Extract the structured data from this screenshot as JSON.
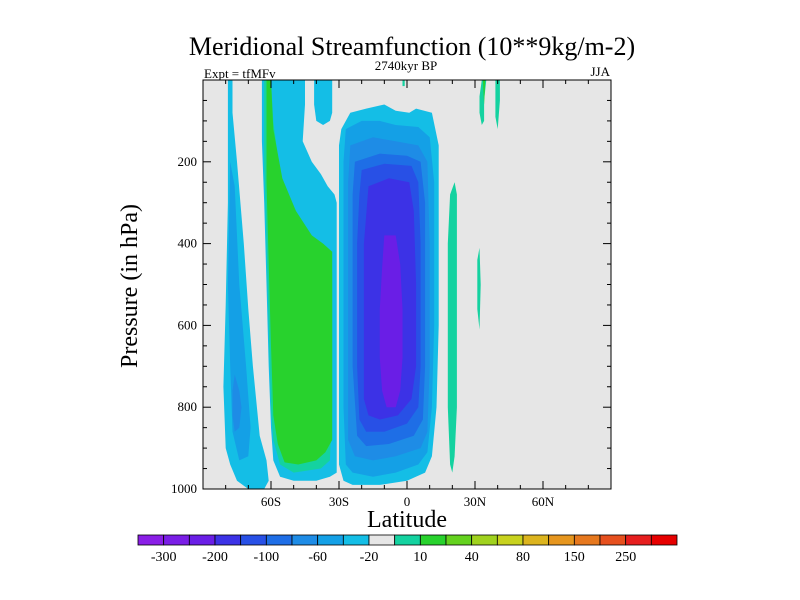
{
  "chart_data": {
    "type": "contour",
    "title": "Meridional Streamfunction (10**9kg/m-2)",
    "subtitle_left": "Expt = tfMFv",
    "subtitle_center": "2740kyr BP",
    "subtitle_right": "JJA",
    "xlabel": "Latitude",
    "ylabel": "Pressure (in hPa)",
    "xlim": [
      -90,
      90
    ],
    "ylim": [
      1000,
      0
    ],
    "xticks": [
      {
        "value": -60,
        "label": "60S"
      },
      {
        "value": -30,
        "label": "30S"
      },
      {
        "value": 0,
        "label": "0"
      },
      {
        "value": 30,
        "label": "30N"
      },
      {
        "value": 60,
        "label": "60N"
      }
    ],
    "yticks": [
      {
        "value": 200,
        "label": "200"
      },
      {
        "value": 400,
        "label": "400"
      },
      {
        "value": 600,
        "label": "600"
      },
      {
        "value": 800,
        "label": "800"
      },
      {
        "value": 1000,
        "label": "1000"
      }
    ],
    "background_color": "#e6e6e6",
    "colorbar": {
      "colors": [
        "#8a1ee6",
        "#7a1ee6",
        "#6a1ee6",
        "#3c32e6",
        "#2850e6",
        "#1e6ee6",
        "#1e8ce6",
        "#14a0e6",
        "#14bee6",
        "#e6e6e6",
        "#14d2a0",
        "#28d22d",
        "#64d21e",
        "#a0d21e",
        "#c8d21e",
        "#dcb41e",
        "#e6961e",
        "#e6781e",
        "#e6501e",
        "#e61e1e",
        "#e60000"
      ],
      "labels": [
        {
          "after_box": 1,
          "label": "-300"
        },
        {
          "after_box": 3,
          "label": "-200"
        },
        {
          "after_box": 5,
          "label": "-100"
        },
        {
          "after_box": 7,
          "label": "-60"
        },
        {
          "after_box": 9,
          "label": "-20"
        },
        {
          "after_box": 11,
          "label": "10"
        },
        {
          "after_box": 13,
          "label": "40"
        },
        {
          "after_box": 15,
          "label": "80"
        },
        {
          "after_box": 17,
          "label": "150"
        },
        {
          "after_box": 19,
          "label": "250"
        }
      ]
    },
    "regions": [
      {
        "name": "sh-outer-cell-light",
        "color": "#14bee6",
        "points": [
          [
            -79,
            0
          ],
          [
            -77,
            0
          ],
          [
            -77,
            80
          ],
          [
            -75,
            200
          ],
          [
            -72,
            400
          ],
          [
            -70,
            560
          ],
          [
            -68,
            700
          ],
          [
            -65,
            870
          ],
          [
            -62,
            930
          ],
          [
            -61,
            980
          ],
          [
            -63,
            1000
          ],
          [
            -70,
            1000
          ],
          [
            -75,
            980
          ],
          [
            -78,
            940
          ],
          [
            -80,
            900
          ],
          [
            -81,
            750
          ],
          [
            -80,
            550
          ],
          [
            -79,
            300
          ]
        ]
      },
      {
        "name": "sh-outer-cell-mid",
        "color": "#14a0e6",
        "points": [
          [
            -78,
            200
          ],
          [
            -76,
            260
          ],
          [
            -74,
            500
          ],
          [
            -71,
            700
          ],
          [
            -69,
            850
          ],
          [
            -70,
            920
          ],
          [
            -74,
            930
          ],
          [
            -77,
            860
          ],
          [
            -78,
            700
          ],
          [
            -79,
            500
          ]
        ]
      },
      {
        "name": "sh-outer-cell-core",
        "color": "#1e8ce6",
        "points": [
          [
            -76,
            720
          ],
          [
            -74,
            760
          ],
          [
            -73,
            800
          ],
          [
            -74,
            850
          ],
          [
            -76,
            860
          ],
          [
            -77,
            820
          ],
          [
            -77,
            760
          ]
        ]
      },
      {
        "name": "sh-ferrel-cyan",
        "color": "#14bee6",
        "points": [
          [
            -64,
            0
          ],
          [
            -45,
            0
          ],
          [
            -45,
            60
          ],
          [
            -46,
            150
          ],
          [
            -42,
            200
          ],
          [
            -38,
            230
          ],
          [
            -35,
            260
          ],
          [
            -32,
            280
          ],
          [
            -31,
            300
          ],
          [
            -31,
            500
          ],
          [
            -31,
            800
          ],
          [
            -31,
            920
          ],
          [
            -31,
            960
          ],
          [
            -34,
            970
          ],
          [
            -40,
            980
          ],
          [
            -50,
            980
          ],
          [
            -56,
            970
          ],
          [
            -59,
            930
          ],
          [
            -60,
            850
          ],
          [
            -61,
            700
          ],
          [
            -62,
            500
          ],
          [
            -63,
            300
          ],
          [
            -64,
            150
          ]
        ]
      },
      {
        "name": "sh-ferrel-teal",
        "color": "#14d2a0",
        "points": [
          [
            -63,
            0
          ],
          [
            -60,
            0
          ],
          [
            -59,
            100
          ],
          [
            -56,
            230
          ],
          [
            -52,
            300
          ],
          [
            -46,
            360
          ],
          [
            -40,
            400
          ],
          [
            -36,
            430
          ],
          [
            -33,
            470
          ],
          [
            -33,
            600
          ],
          [
            -33,
            800
          ],
          [
            -34,
            930
          ],
          [
            -38,
            950
          ],
          [
            -50,
            960
          ],
          [
            -56,
            940
          ],
          [
            -59,
            880
          ],
          [
            -60,
            800
          ],
          [
            -61,
            600
          ],
          [
            -62,
            400
          ],
          [
            -63,
            200
          ]
        ]
      },
      {
        "name": "sh-ferrel-green",
        "color": "#28d22d",
        "points": [
          [
            -62,
            0
          ],
          [
            -60,
            0
          ],
          [
            -59,
            120
          ],
          [
            -55,
            240
          ],
          [
            -49,
            320
          ],
          [
            -42,
            380
          ],
          [
            -37,
            400
          ],
          [
            -33,
            420
          ],
          [
            -33,
            560
          ],
          [
            -33,
            800
          ],
          [
            -33,
            880
          ],
          [
            -36,
            910
          ],
          [
            -40,
            930
          ],
          [
            -48,
            940
          ],
          [
            -54,
            935
          ],
          [
            -57,
            890
          ],
          [
            -59,
            820
          ],
          [
            -60,
            650
          ],
          [
            -61,
            450
          ],
          [
            -62,
            250
          ]
        ]
      },
      {
        "name": "upper-cyan-blob",
        "color": "#14bee6",
        "points": [
          [
            -41,
            0
          ],
          [
            -33,
            0
          ],
          [
            -33,
            80
          ],
          [
            -34,
            100
          ],
          [
            -37,
            110
          ],
          [
            -40,
            100
          ],
          [
            -41,
            60
          ]
        ]
      },
      {
        "name": "tropical-light",
        "color": "#14bee6",
        "points": [
          [
            -29,
            120
          ],
          [
            -25,
            80
          ],
          [
            -18,
            70
          ],
          [
            -10,
            60
          ],
          [
            -5,
            75
          ],
          [
            1,
            80
          ],
          [
            4,
            70
          ],
          [
            11,
            80
          ],
          [
            14,
            160
          ],
          [
            14,
            300
          ],
          [
            14,
            600
          ],
          [
            13,
            800
          ],
          [
            11,
            920
          ],
          [
            8,
            960
          ],
          [
            0,
            980
          ],
          [
            -12,
            990
          ],
          [
            -24,
            990
          ],
          [
            -28,
            980
          ],
          [
            -30,
            940
          ],
          [
            -30,
            800
          ],
          [
            -30,
            600
          ],
          [
            -30,
            400
          ],
          [
            -30,
            250
          ],
          [
            -30,
            160
          ]
        ]
      },
      {
        "name": "tropical-mid",
        "color": "#14a0e6",
        "points": [
          [
            -27,
            120
          ],
          [
            -20,
            100
          ],
          [
            -12,
            100
          ],
          [
            -5,
            110
          ],
          [
            5,
            115
          ],
          [
            10,
            140
          ],
          [
            12,
            250
          ],
          [
            12,
            600
          ],
          [
            11,
            800
          ],
          [
            9,
            910
          ],
          [
            5,
            940
          ],
          [
            -5,
            960
          ],
          [
            -15,
            970
          ],
          [
            -24,
            960
          ],
          [
            -27,
            940
          ],
          [
            -28,
            800
          ],
          [
            -28,
            400
          ],
          [
            -28,
            200
          ]
        ]
      },
      {
        "name": "tropical-blue1",
        "color": "#1e8ce6",
        "points": [
          [
            -25,
            160
          ],
          [
            -15,
            140
          ],
          [
            -5,
            150
          ],
          [
            5,
            160
          ],
          [
            9,
            200
          ],
          [
            10,
            400
          ],
          [
            10,
            700
          ],
          [
            9,
            860
          ],
          [
            6,
            900
          ],
          [
            -5,
            920
          ],
          [
            -15,
            930
          ],
          [
            -23,
            920
          ],
          [
            -26,
            880
          ],
          [
            -26,
            700
          ],
          [
            -26,
            400
          ],
          [
            -26,
            250
          ]
        ]
      },
      {
        "name": "tropical-blue2",
        "color": "#1e6ee6",
        "points": [
          [
            -23,
            200
          ],
          [
            -12,
            180
          ],
          [
            0,
            185
          ],
          [
            6,
            200
          ],
          [
            8,
            300
          ],
          [
            8,
            700
          ],
          [
            7,
            830
          ],
          [
            3,
            870
          ],
          [
            -8,
            890
          ],
          [
            -18,
            895
          ],
          [
            -22,
            870
          ],
          [
            -24,
            700
          ],
          [
            -24,
            400
          ],
          [
            -24,
            280
          ]
        ]
      },
      {
        "name": "tropical-blue3",
        "color": "#2850e6",
        "points": [
          [
            -20,
            220
          ],
          [
            -10,
            205
          ],
          [
            2,
            210
          ],
          [
            5,
            250
          ],
          [
            6,
            400
          ],
          [
            6,
            700
          ],
          [
            5,
            800
          ],
          [
            0,
            840
          ],
          [
            -10,
            860
          ],
          [
            -18,
            860
          ],
          [
            -21,
            830
          ],
          [
            -22,
            700
          ],
          [
            -22,
            400
          ],
          [
            -21,
            280
          ]
        ]
      },
      {
        "name": "tropical-blue4",
        "color": "#3c32e6",
        "points": [
          [
            -17,
            260
          ],
          [
            -8,
            240
          ],
          [
            1,
            250
          ],
          [
            3,
            320
          ],
          [
            4,
            500
          ],
          [
            4,
            700
          ],
          [
            2,
            780
          ],
          [
            -4,
            820
          ],
          [
            -12,
            830
          ],
          [
            -17,
            820
          ],
          [
            -19,
            780
          ],
          [
            -19,
            600
          ],
          [
            -19,
            400
          ]
        ]
      },
      {
        "name": "tropical-core",
        "color": "#6a1ee6",
        "points": [
          [
            -10,
            380
          ],
          [
            -5,
            380
          ],
          [
            -3,
            450
          ],
          [
            -2,
            560
          ],
          [
            -2,
            680
          ],
          [
            -3,
            760
          ],
          [
            -5,
            800
          ],
          [
            -9,
            800
          ],
          [
            -11,
            760
          ],
          [
            -12,
            680
          ],
          [
            -12,
            560
          ],
          [
            -11,
            460
          ]
        ]
      },
      {
        "name": "upper-equator-teal",
        "color": "#14d2a0",
        "points": [
          [
            -2,
            0
          ],
          [
            -1,
            0
          ],
          [
            -1,
            15
          ],
          [
            -2,
            15
          ]
        ]
      },
      {
        "name": "nh-teal-column",
        "color": "#14d2a0",
        "points": [
          [
            19,
            280
          ],
          [
            21,
            250
          ],
          [
            22,
            280
          ],
          [
            22,
            400
          ],
          [
            22,
            600
          ],
          [
            22,
            800
          ],
          [
            21,
            920
          ],
          [
            20,
            960
          ],
          [
            19,
            940
          ],
          [
            18,
            800
          ],
          [
            18,
            600
          ],
          [
            18,
            400
          ]
        ]
      },
      {
        "name": "nh-upper-green-1",
        "color": "#14d2a0",
        "points": [
          [
            33,
            0
          ],
          [
            35,
            0
          ],
          [
            34,
            50
          ],
          [
            34,
            100
          ],
          [
            33,
            110
          ],
          [
            32,
            80
          ],
          [
            32,
            40
          ]
        ]
      },
      {
        "name": "nh-upper-green-2",
        "color": "#14d2a0",
        "points": [
          [
            39,
            0
          ],
          [
            41,
            0
          ],
          [
            41,
            50
          ],
          [
            40,
            120
          ],
          [
            39,
            90
          ]
        ]
      },
      {
        "name": "nh-upper-green-core",
        "color": "#28d22d",
        "points": [
          [
            33.5,
            0
          ],
          [
            34.5,
            0
          ],
          [
            34,
            60
          ]
        ]
      },
      {
        "name": "nh-thin-sliver",
        "color": "#14d2a0",
        "points": [
          [
            31,
            440
          ],
          [
            32,
            410
          ],
          [
            32.5,
            500
          ],
          [
            32,
            610
          ],
          [
            31,
            560
          ]
        ]
      }
    ]
  }
}
